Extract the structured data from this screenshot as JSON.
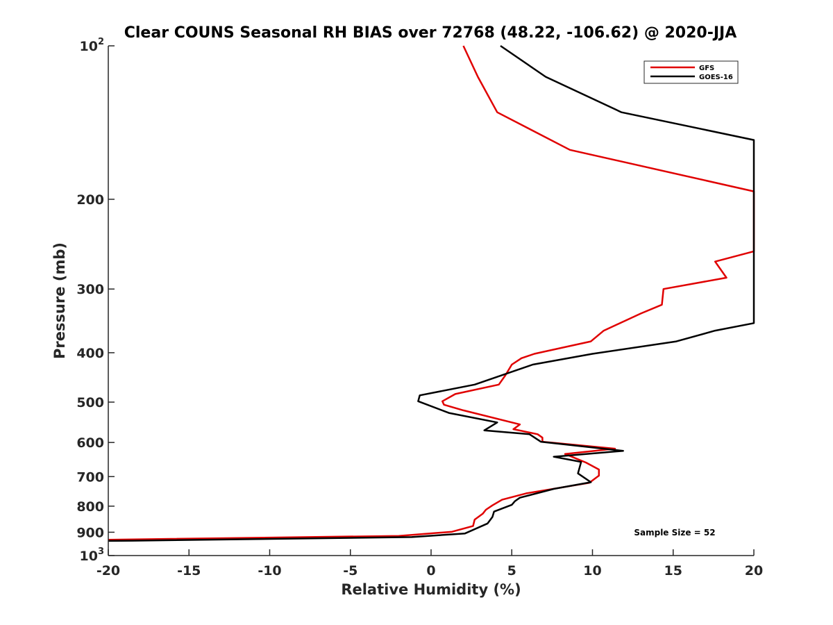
{
  "chart_data": {
    "type": "line",
    "title": "Clear COUNS Seasonal RH BIAS over 72768 (48.22, -106.62) @ 2020-JJA",
    "xlabel": "Relative Humidity (%)",
    "ylabel": "Pressure (mb)",
    "xlim": [
      -20,
      20
    ],
    "ylim": [
      100,
      1000
    ],
    "yscale": "log",
    "y_reversed": true,
    "x_ticks": [
      -20,
      -15,
      -10,
      -5,
      0,
      5,
      10,
      15,
      20
    ],
    "x_tick_labels": [
      "-20",
      "-15",
      "-10",
      "-5",
      "0",
      "5",
      "10",
      "15",
      "20"
    ],
    "y_ticks": [
      100,
      200,
      300,
      400,
      500,
      600,
      700,
      800,
      900,
      1000
    ],
    "y_tick_labels": [
      {
        "base": "10",
        "exp": "2"
      },
      {
        "base": "200"
      },
      {
        "base": "300"
      },
      {
        "base": "400"
      },
      {
        "base": "500"
      },
      {
        "base": "600"
      },
      {
        "base": "700"
      },
      {
        "base": "800"
      },
      {
        "base": "900"
      },
      {
        "base": "10",
        "exp": "3"
      }
    ],
    "grid": false,
    "legend_position": "top-right",
    "annotation": "Sample Size = 52",
    "series": [
      {
        "name": "GFS",
        "color": "#e00000",
        "points": [
          [
            2.0,
            100
          ],
          [
            2.9,
            115
          ],
          [
            4.1,
            135
          ],
          [
            8.6,
            160
          ],
          [
            20.0,
            193
          ],
          [
            20.0,
            253
          ],
          [
            17.6,
            265
          ],
          [
            18.3,
            285
          ],
          [
            14.4,
            300
          ],
          [
            14.3,
            322
          ],
          [
            13.0,
            335
          ],
          [
            10.7,
            362
          ],
          [
            9.9,
            380
          ],
          [
            6.4,
            402
          ],
          [
            5.6,
            410
          ],
          [
            5.0,
            422
          ],
          [
            4.6,
            443
          ],
          [
            4.2,
            462
          ],
          [
            1.5,
            482
          ],
          [
            0.7,
            498
          ],
          [
            0.8,
            506
          ],
          [
            2.0,
            519
          ],
          [
            5.5,
            553
          ],
          [
            5.1,
            565
          ],
          [
            6.6,
            578
          ],
          [
            6.9,
            587
          ],
          [
            6.9,
            598
          ],
          [
            11.4,
            617
          ],
          [
            8.3,
            632
          ],
          [
            9.6,
            657
          ],
          [
            10.4,
            678
          ],
          [
            10.4,
            697
          ],
          [
            9.8,
            720
          ],
          [
            5.9,
            755
          ],
          [
            4.4,
            777
          ],
          [
            3.8,
            797
          ],
          [
            3.4,
            813
          ],
          [
            3.2,
            828
          ],
          [
            2.7,
            850
          ],
          [
            2.6,
            875
          ],
          [
            1.3,
            898
          ],
          [
            -2.0,
            915
          ],
          [
            -20.0,
            931
          ]
        ]
      },
      {
        "name": "GOES-16",
        "color": "#000000",
        "points": [
          [
            4.3,
            100
          ],
          [
            7.1,
            115
          ],
          [
            11.8,
            135
          ],
          [
            20.0,
            153
          ],
          [
            20.0,
            350
          ],
          [
            17.6,
            362
          ],
          [
            15.2,
            380
          ],
          [
            10.0,
            402
          ],
          [
            6.3,
            422
          ],
          [
            2.7,
            462
          ],
          [
            -0.7,
            485
          ],
          [
            -0.8,
            498
          ],
          [
            1.1,
            525
          ],
          [
            4.1,
            548
          ],
          [
            3.3,
            568
          ],
          [
            6.1,
            578
          ],
          [
            6.8,
            598
          ],
          [
            11.9,
            623
          ],
          [
            7.6,
            640
          ],
          [
            9.3,
            655
          ],
          [
            9.1,
            690
          ],
          [
            9.9,
            718
          ],
          [
            7.6,
            740
          ],
          [
            5.5,
            770
          ],
          [
            5.2,
            782
          ],
          [
            5.0,
            795
          ],
          [
            3.9,
            820
          ],
          [
            3.8,
            840
          ],
          [
            3.5,
            865
          ],
          [
            2.1,
            905
          ],
          [
            -1.2,
            920
          ],
          [
            -18.5,
            935
          ],
          [
            -20.0,
            936
          ]
        ]
      }
    ]
  }
}
